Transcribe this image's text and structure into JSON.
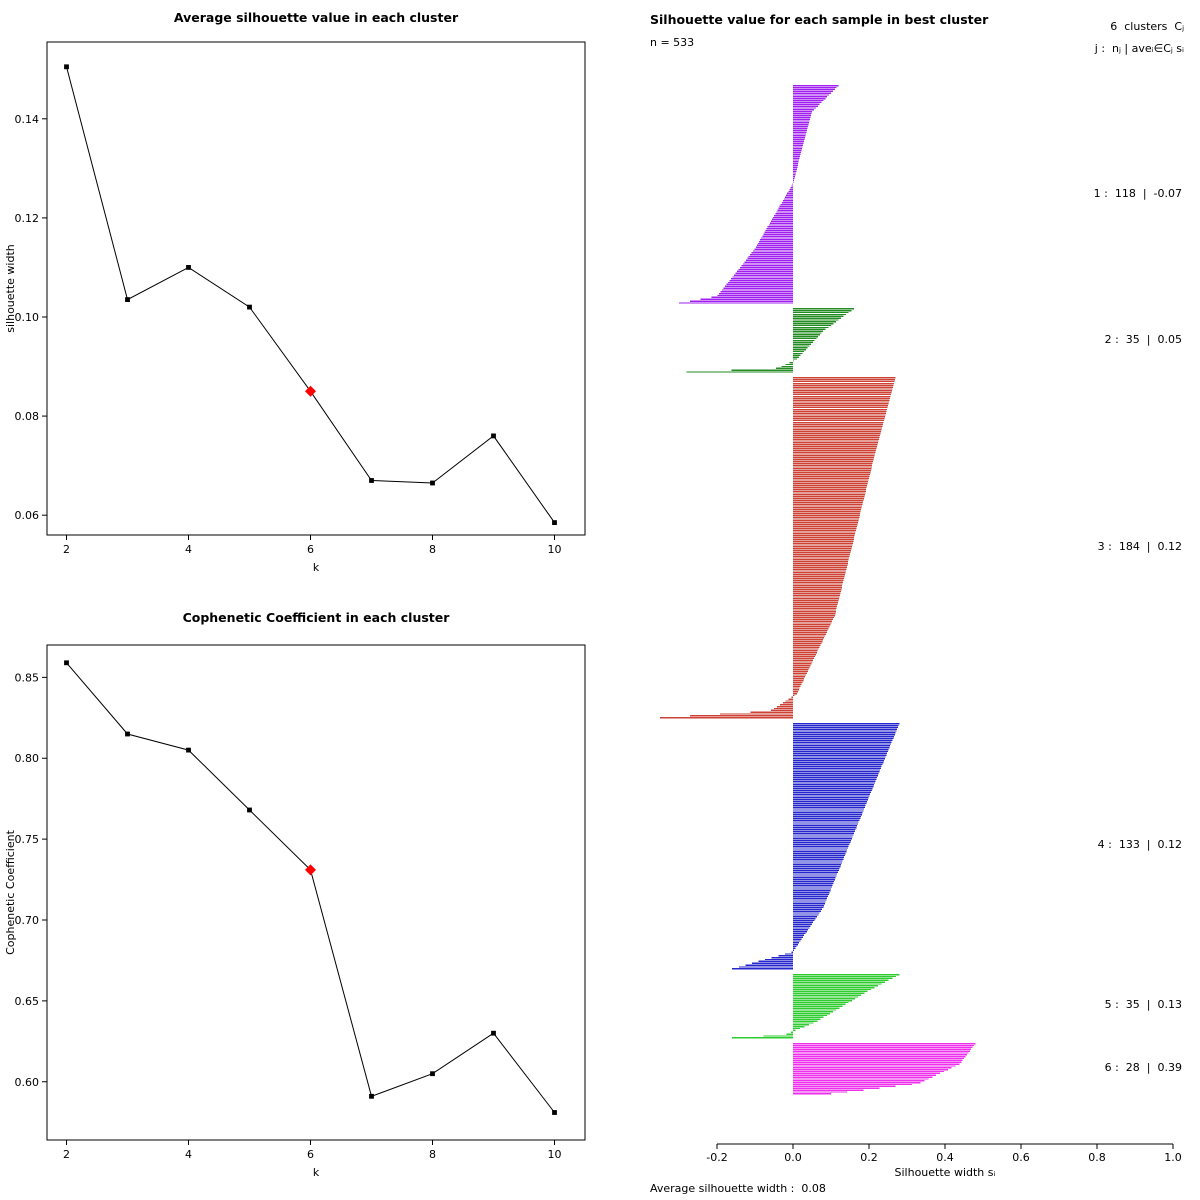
{
  "chart_data": [
    {
      "type": "line",
      "title": "Average silhouette value in each cluster",
      "xlabel": "k",
      "ylabel": "silhouette width",
      "x": [
        2,
        3,
        4,
        5,
        6,
        7,
        8,
        9,
        10
      ],
      "y": [
        0.1505,
        0.1035,
        0.11,
        0.102,
        0.085,
        0.067,
        0.0665,
        0.076,
        0.0585
      ],
      "xlim": [
        1.68,
        10.5
      ],
      "ylim": [
        0.056,
        0.1555
      ],
      "xticks": [
        2,
        4,
        6,
        8,
        10
      ],
      "xtick_labels": [
        "2",
        "4",
        "6",
        "8",
        "10"
      ],
      "yticks": [
        0.06,
        0.08,
        0.1,
        0.12,
        0.14
      ],
      "ytick_labels": [
        "0.06",
        "0.08",
        "0.10",
        "0.12",
        "0.14"
      ],
      "highlight_x": 6,
      "highlight_color": "#ff0000",
      "line_color": "#000000",
      "marker_color": "#000000",
      "grid": false
    },
    {
      "type": "line",
      "title": "Cophenetic Coefficient in each cluster",
      "xlabel": "k",
      "ylabel": "Cophenetic Coefficient",
      "x": [
        2,
        3,
        4,
        5,
        6,
        7,
        8,
        9,
        10
      ],
      "y": [
        0.859,
        0.815,
        0.805,
        0.768,
        0.731,
        0.591,
        0.605,
        0.63,
        0.581
      ],
      "xlim": [
        1.68,
        10.5
      ],
      "ylim": [
        0.564,
        0.87
      ],
      "xticks": [
        2,
        4,
        6,
        8,
        10
      ],
      "xtick_labels": [
        "2",
        "4",
        "6",
        "8",
        "10"
      ],
      "yticks": [
        0.6,
        0.65,
        0.7,
        0.75,
        0.8,
        0.85
      ],
      "ytick_labels": [
        "0.60",
        "0.65",
        "0.70",
        "0.75",
        "0.80",
        "0.85"
      ],
      "highlight_x": 6,
      "highlight_color": "#ff0000",
      "line_color": "#000000",
      "marker_color": "#000000",
      "grid": false
    },
    {
      "type": "silhouette-bars",
      "title": "Silhouette value for each sample in best cluster",
      "subtitle": "n = 533",
      "n_total": 533,
      "right_header_line1": "6  clusters  Cⱼ",
      "right_header_line2": "j :  nⱼ | aveᵢ∈Cⱼ sᵢ",
      "xlabel": "Silhouette width sᵢ",
      "footer": "Average silhouette width :  0.08",
      "average_silhouette_width": 0.08,
      "xlim": [
        -0.35,
        1.0
      ],
      "xticks": [
        -0.2,
        0.0,
        0.2,
        0.4,
        0.6,
        0.8,
        1.0
      ],
      "xtick_labels": [
        "-0.2",
        "0.0",
        "0.2",
        "0.4",
        "0.6",
        "0.8",
        "1.0"
      ],
      "clusters": [
        {
          "j": 1,
          "n": 118,
          "avg_s": -0.07,
          "label": "1 :  118  |  -0.07",
          "color": "#a020f0",
          "anchors": [
            [
              0,
              0.12
            ],
            [
              0.12,
              0.05
            ],
            [
              0.45,
              0.0
            ],
            [
              0.75,
              -0.1
            ],
            [
              0.97,
              -0.2
            ],
            [
              1,
              -0.3
            ]
          ]
        },
        {
          "j": 2,
          "n": 35,
          "avg_s": 0.05,
          "label": "2 :  35  |  0.05",
          "color": "#228b22",
          "anchors": [
            [
              0,
              0.16
            ],
            [
              0.35,
              0.08
            ],
            [
              0.8,
              0.01
            ],
            [
              0.94,
              -0.04
            ],
            [
              1,
              -0.28
            ]
          ]
        },
        {
          "j": 3,
          "n": 184,
          "avg_s": 0.12,
          "label": "3 :  184  |  0.12",
          "color": "#cd4234",
          "anchors": [
            [
              0,
              0.27
            ],
            [
              0.25,
              0.21
            ],
            [
              0.7,
              0.11
            ],
            [
              0.93,
              0.01
            ],
            [
              0.98,
              -0.06
            ],
            [
              1,
              -0.35
            ]
          ]
        },
        {
          "j": 4,
          "n": 133,
          "avg_s": 0.12,
          "label": "4 :  133  |  0.12",
          "color": "#2626cc",
          "anchors": [
            [
              0,
              0.28
            ],
            [
              0.3,
              0.2
            ],
            [
              0.75,
              0.08
            ],
            [
              0.93,
              0.0
            ],
            [
              1,
              -0.16
            ]
          ]
        },
        {
          "j": 5,
          "n": 35,
          "avg_s": 0.13,
          "label": "5 :  35  |  0.13",
          "color": "#2fcc2f",
          "anchors": [
            [
              0,
              0.28
            ],
            [
              0.25,
              0.2
            ],
            [
              0.75,
              0.06
            ],
            [
              0.95,
              -0.02
            ],
            [
              1,
              -0.16
            ]
          ]
        },
        {
          "j": 6,
          "n": 28,
          "avg_s": 0.39,
          "label": "6 :  28  |  0.39",
          "color": "#ee2fee",
          "anchors": [
            [
              0,
              0.48
            ],
            [
              0.4,
              0.44
            ],
            [
              0.8,
              0.33
            ],
            [
              1,
              0.1
            ]
          ]
        }
      ]
    }
  ]
}
